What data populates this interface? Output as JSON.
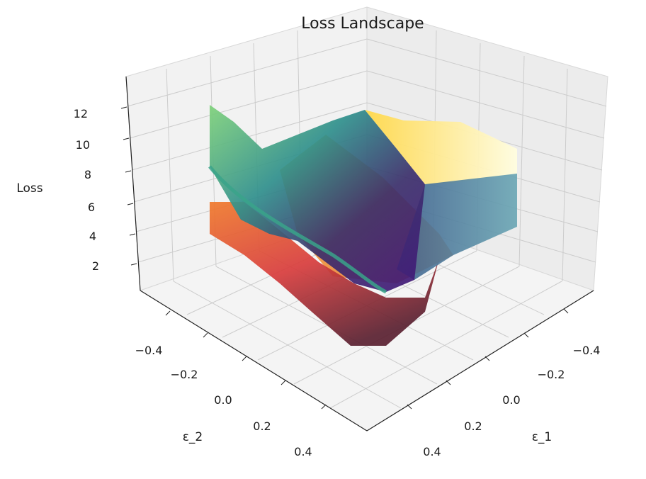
{
  "chart_data": {
    "type": "surface3d",
    "title": "Loss Landscape",
    "xlabel": "ε_1",
    "ylabel": "ε_2",
    "zlabel": "Loss",
    "xlim": [
      -0.5,
      0.5
    ],
    "ylim": [
      -0.5,
      0.5
    ],
    "zlim": [
      0,
      14
    ],
    "x_ticks": [
      "−0.4",
      "−0.2",
      "0.0",
      "0.2",
      "0.4"
    ],
    "y_ticks": [
      "−0.4",
      "−0.2",
      "0.0",
      "0.2",
      "0.4"
    ],
    "z_ticks": [
      "2",
      "4",
      "6",
      "8",
      "10",
      "12"
    ],
    "grid": true,
    "surfaces": [
      {
        "colormap": "viridis",
        "description_values": "loss over (ε_1, ε_2), high ~12 at back-left edge, minimum ~1 near center"
      },
      {
        "colormap": "inferno/autumn",
        "description_values": "second loss surface, minimum ~0 near center-front, rising to ~9 at back"
      }
    ]
  }
}
